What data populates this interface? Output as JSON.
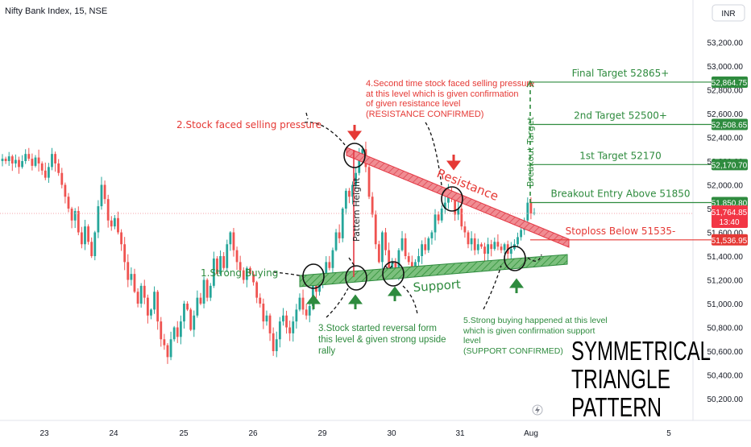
{
  "header": {
    "symbol_title": "Nifty Bank Index, 15, NSE",
    "currency": "INR"
  },
  "chart_data": {
    "type": "candlestick",
    "title": "Nifty Bank Index, 15, NSE",
    "x_ticks": [
      "23",
      "24",
      "25",
      "26",
      "29",
      "30",
      "31",
      "Aug",
      "5"
    ],
    "y_ticks": [
      50200,
      50400,
      50600,
      50800,
      51000,
      51200,
      51400,
      51600,
      51800,
      52000,
      52200,
      52400,
      52600,
      52800,
      53000,
      53200
    ],
    "y_tick_labels": [
      "50,200.00",
      "50,400.00",
      "50,600.00",
      "50,800.00",
      "51,000.00",
      "51,200.00",
      "51,400.00",
      "51,600.00",
      "51,800.00",
      "52,000.00",
      "52,200.00",
      "52,400.00",
      "52,600.00",
      "52,800.00",
      "53,000.00",
      "53,200.00"
    ],
    "ylim": [
      50100,
      53400
    ],
    "price_closes": [
      52220,
      52200,
      52240,
      52180,
      52210,
      52150,
      52200,
      52260,
      52220,
      52160,
      52230,
      52180,
      52120,
      52060,
      52150,
      52260,
      52180,
      52100,
      52000,
      51900,
      51800,
      51700,
      51780,
      51600,
      51500,
      51650,
      51520,
      51400,
      51600,
      51820,
      52000,
      51880,
      51700,
      51650,
      51720,
      51600,
      51500,
      51350,
      51200,
      51250,
      51100,
      51000,
      51150,
      51050,
      50900,
      50950,
      51100,
      50850,
      50700,
      50650,
      50550,
      50700,
      50800,
      50720,
      50850,
      51000,
      50950,
      50780,
      50900,
      51050,
      51000,
      51200,
      51050,
      51150,
      51380,
      51250,
      51400,
      51300,
      51500,
      51600,
      51450,
      51350,
      51280,
      51200,
      51300,
      51250,
      51180,
      51050,
      51000,
      50850,
      50900,
      50750,
      50600,
      50700,
      50850,
      50900,
      50800,
      50750,
      50850,
      50950,
      51050,
      50950,
      50900,
      50980,
      51150,
      51100,
      51200,
      51250,
      51350,
      51300,
      51450,
      51600,
      51550,
      51800,
      51950,
      51900,
      52000,
      52100,
      52250,
      52300,
      52150,
      51900,
      51750,
      51500,
      51350,
      51600,
      51450,
      51300,
      51350,
      51250,
      51450,
      51550,
      51400,
      51350,
      51280,
      51350,
      51400,
      51500,
      51450,
      51550,
      51600,
      51750,
      51700,
      51800,
      51850,
      51950,
      51900,
      51750,
      51800,
      51650,
      51600,
      51500,
      51550,
      51450,
      51500,
      51480,
      51420,
      51500,
      51460,
      51520,
      51480,
      51450,
      51500,
      51420,
      51460,
      51500,
      51560,
      51620,
      51700,
      51850,
      51760,
      51765
    ],
    "annotations": {
      "a1": "1.Strong Buying",
      "a2": "2.Stock faced selling pressure",
      "a3": [
        "3.Stock started reversal form",
        "this level & given strong upside",
        "rally"
      ],
      "a4": [
        "4.Second time stock faced selling pressure",
        "at this level which is given confirmation",
        "of given resistance level",
        "(RESISTANCE CONFIRMED)"
      ],
      "a5": [
        "5.Strong buying happened at this level",
        "which is given confirmation support",
        "level",
        "(SUPPORT CONFIRMED)"
      ],
      "resistance": "Resistance",
      "support": "Support",
      "pattern_height": "Pattern Height",
      "breakout_target": "Breakout Target"
    },
    "levels": [
      {
        "label": "Final Target 52865+",
        "price": 52864.75,
        "tag": "52,864.75",
        "color": "#2e8b3e"
      },
      {
        "label": "2nd Target 52500+",
        "price": 52508.65,
        "tag": "52,508.65",
        "color": "#2e8b3e"
      },
      {
        "label": "1st Target 52170",
        "price": 52170.7,
        "tag": "52,170.70",
        "color": "#2e8b3e"
      },
      {
        "label": "Breakout Entry Above 51850",
        "price": 51850.8,
        "tag": "51,850.80",
        "color": "#2e8b3e"
      },
      {
        "label": "Stoploss Below 51535-",
        "price": 51536.95,
        "tag": "51,536.95",
        "color": "#e53935"
      }
    ],
    "current_price": {
      "value": "51,764.85",
      "countdown": "13:40",
      "price": 51764.85
    },
    "overlay_title": [
      "SYMMETRICAL",
      "TRIANGLE",
      "PATTERN"
    ]
  }
}
